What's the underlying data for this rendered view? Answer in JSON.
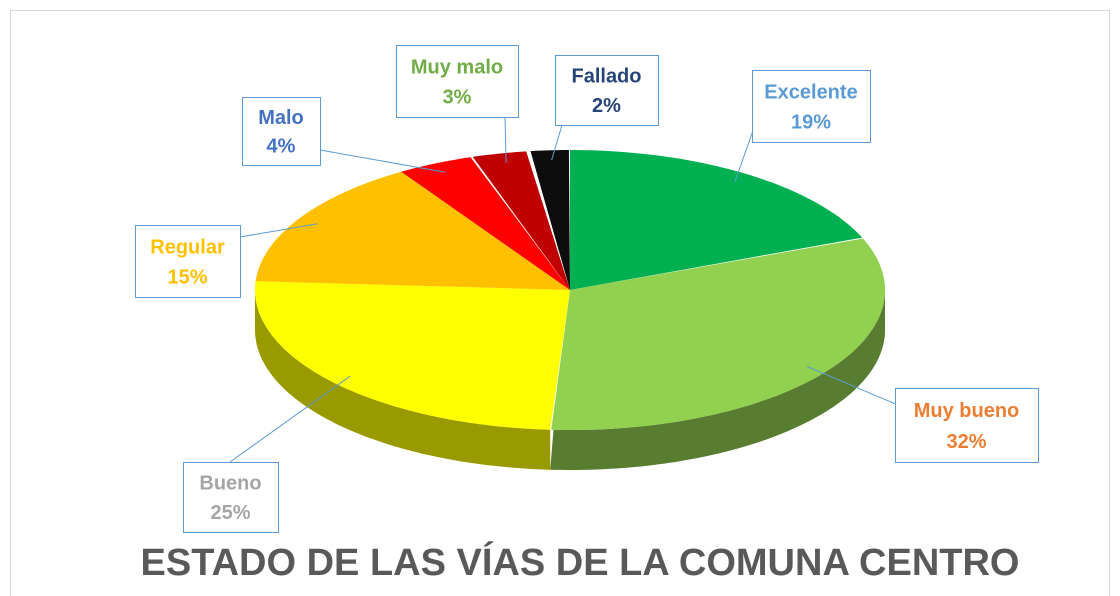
{
  "chart_data": {
    "type": "pie",
    "title": "ESTADO DE LAS VÍAS DE LA COMUNA CENTRO",
    "categories": [
      "Excelente",
      "Muy bueno",
      "Bueno",
      "Regular",
      "Malo",
      "Muy malo",
      "Fallado"
    ],
    "values": [
      19,
      32,
      25,
      15,
      4,
      3,
      2
    ],
    "value_labels": [
      "19%",
      "32%",
      "25%",
      "15%",
      "4%",
      "3%",
      "2%"
    ],
    "colors": [
      "#00b050",
      "#92d050",
      "#ffff00",
      "#ffc000",
      "#ff0000",
      "#c00000",
      "#0d0d0d"
    ],
    "label_colors": [
      "#5b9bd5",
      "#ed7d31",
      "#a5a5a5",
      "#ffc000",
      "#4472c4",
      "#70ad47",
      "#264478"
    ]
  }
}
